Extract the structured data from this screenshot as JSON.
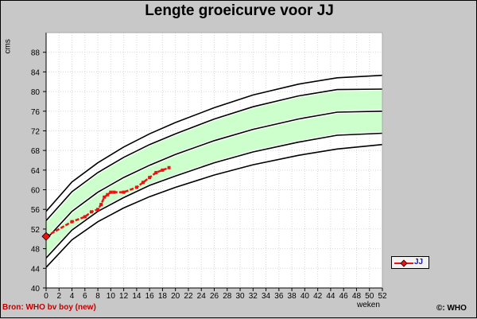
{
  "title": "Lengte groeicurve voor JJ",
  "y_axis_label": "cms",
  "x_axis_label": "weken",
  "source": "Bron: WHO bv boy (new)",
  "copyright": "©: WHO",
  "legend": {
    "label": "JJ"
  },
  "colors": {
    "background": "#c8c8c8",
    "plot": "#ffffff",
    "band": "#ccffcc",
    "series": "#ee1111",
    "grid": "#d8d8d8"
  },
  "chart_data": {
    "type": "line",
    "title": "Lengte groeicurve voor JJ",
    "xlabel": "weken",
    "ylabel": "cms",
    "xlim": [
      0,
      52
    ],
    "ylim": [
      40,
      92
    ],
    "x_ticks": [
      0,
      2,
      4,
      6,
      8,
      10,
      12,
      14,
      16,
      18,
      20,
      22,
      24,
      26,
      28,
      30,
      32,
      34,
      36,
      38,
      40,
      42,
      44,
      46,
      48,
      50,
      52
    ],
    "y_ticks": [
      40,
      44,
      48,
      52,
      56,
      60,
      64,
      68,
      72,
      76,
      80,
      84,
      88
    ],
    "grid": true,
    "legend_position": "right",
    "reference_curves": {
      "x": [
        0,
        4,
        8,
        12,
        16,
        20,
        26,
        32,
        39,
        45,
        52
      ],
      "sd_minus3": [
        44.2,
        49.8,
        53.5,
        56.3,
        58.6,
        60.5,
        63.0,
        65.1,
        67.0,
        68.3,
        69.2
      ],
      "sd_minus2": [
        46.1,
        51.8,
        55.6,
        58.4,
        60.9,
        62.8,
        65.5,
        67.7,
        69.7,
        71.1,
        71.5
      ],
      "median": [
        49.9,
        55.6,
        59.5,
        62.5,
        65.0,
        67.2,
        70.0,
        72.3,
        74.4,
        75.8,
        76.0
      ],
      "sd_plus2": [
        53.7,
        59.6,
        63.5,
        66.6,
        69.2,
        71.4,
        74.4,
        76.9,
        79.1,
        80.4,
        80.5
      ],
      "sd_plus3": [
        55.6,
        61.6,
        65.5,
        68.7,
        71.4,
        73.7,
        76.7,
        79.3,
        81.5,
        82.8,
        83.3
      ]
    },
    "series": [
      {
        "name": "JJ",
        "x": [
          0,
          4,
          6,
          7,
          8,
          8.5,
          9,
          9.5,
          10,
          10.5,
          12,
          14,
          15,
          16,
          17,
          18,
          19
        ],
        "y": [
          50.5,
          53.5,
          54.5,
          55.5,
          56,
          57,
          58.5,
          59,
          59.5,
          59.5,
          59.5,
          60.5,
          61.5,
          62.5,
          63.5,
          64,
          64.5
        ]
      }
    ]
  }
}
